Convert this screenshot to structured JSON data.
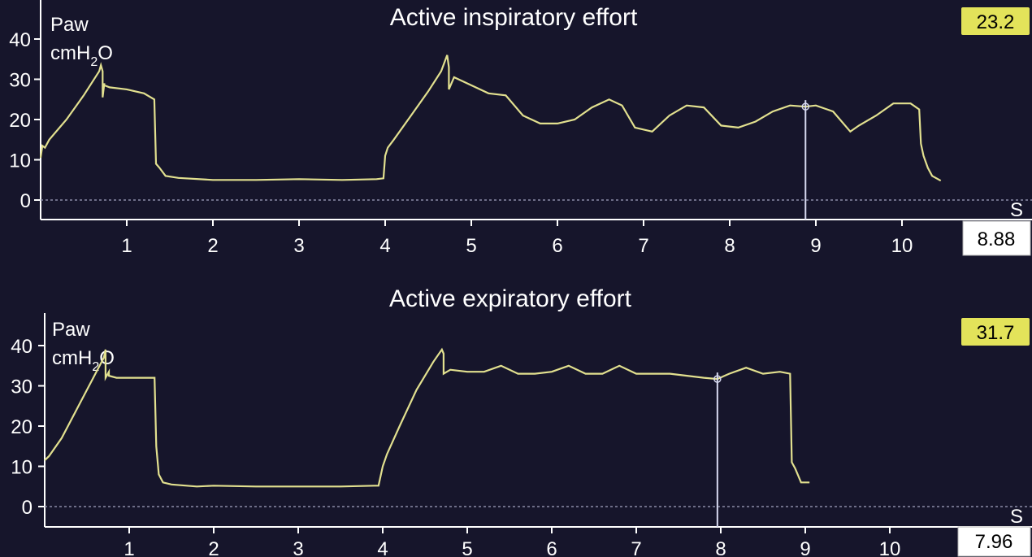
{
  "colors": {
    "background": "#16152b",
    "trace": "#e2e08f",
    "cursor": "#d7d9f0",
    "value_box": "#e3e35a",
    "time_box": "#ffffff",
    "text": "#ffffff",
    "zero_line": "#8c8ca8"
  },
  "chart_data": [
    {
      "type": "line",
      "title": "Active inspiratory effort",
      "ylabel": "Paw",
      "yunit_main": "cmH",
      "yunit_sub": "2",
      "yunit_tail": "O",
      "xunit": "S",
      "ylim": [
        -5,
        44
      ],
      "xlim": [
        0,
        11
      ],
      "yticks": [
        0,
        10,
        20,
        30,
        40
      ],
      "xticks": [
        1,
        2,
        3,
        4,
        5,
        6,
        7,
        8,
        9,
        10
      ],
      "cursor_time": 8.88,
      "cursor_time_label": "8.88",
      "cursor_value_label": "23.2",
      "series": [
        {
          "x": [
            0.0,
            0.02,
            0.05,
            0.1,
            0.3,
            0.5,
            0.68,
            0.7,
            0.72,
            0.72,
            0.74,
            0.74,
            0.8,
            1.0,
            1.2,
            1.32,
            1.34,
            1.38,
            1.45,
            1.6,
            2.0,
            2.5,
            3.0,
            3.5,
            3.9,
            3.98,
            4.0,
            4.03,
            4.1,
            4.3,
            4.5,
            4.65,
            4.72,
            4.74,
            4.74,
            4.8,
            5.0,
            5.2,
            5.4,
            5.6,
            5.8,
            6.0,
            6.2,
            6.4,
            6.6,
            6.75,
            6.9,
            7.1,
            7.3,
            7.5,
            7.7,
            7.9,
            8.1,
            8.3,
            8.5,
            8.7,
            8.88,
            9.0,
            9.2,
            9.4,
            9.5,
            9.7,
            9.9,
            10.1,
            10.2,
            10.22,
            10.25,
            10.3,
            10.35,
            10.45
          ],
          "y": [
            10.5,
            13.5,
            13.0,
            15.0,
            20.0,
            26.0,
            32.0,
            33.5,
            32.0,
            25.5,
            29.0,
            28.5,
            28.0,
            27.5,
            26.5,
            25.0,
            9.0,
            8.0,
            6.0,
            5.5,
            5.0,
            5.0,
            5.2,
            5.0,
            5.2,
            5.4,
            11.0,
            13.0,
            15.0,
            21.0,
            27.0,
            32.0,
            36.0,
            33.0,
            27.5,
            30.5,
            28.5,
            26.5,
            26.0,
            21.0,
            19.0,
            19.0,
            20.0,
            23.0,
            25.0,
            23.5,
            18.0,
            17.0,
            21.0,
            23.5,
            23.0,
            18.5,
            18.0,
            19.5,
            22.0,
            23.5,
            23.2,
            23.5,
            22.0,
            17.0,
            18.5,
            21.0,
            24.0,
            24.0,
            22.5,
            14.0,
            11.0,
            8.0,
            6.0,
            4.8
          ]
        }
      ]
    },
    {
      "type": "line",
      "title": "Active expiratory effort",
      "ylabel": "Paw",
      "yunit_main": "cmH",
      "yunit_sub": "2",
      "yunit_tail": "O",
      "xunit": "S",
      "ylim": [
        -5,
        44
      ],
      "xlim": [
        0,
        11
      ],
      "yticks": [
        0,
        10,
        20,
        30,
        40
      ],
      "xticks": [
        1,
        2,
        3,
        4,
        5,
        6,
        7,
        8,
        9,
        10
      ],
      "cursor_time": 7.96,
      "cursor_time_label": "7.96",
      "cursor_value_label": "31.7",
      "series": [
        {
          "x": [
            0.0,
            0.05,
            0.2,
            0.4,
            0.6,
            0.7,
            0.72,
            0.72,
            0.76,
            0.76,
            0.85,
            1.0,
            1.2,
            1.3,
            1.32,
            1.35,
            1.4,
            1.5,
            1.8,
            2.0,
            2.5,
            3.0,
            3.5,
            3.9,
            3.95,
            4.0,
            4.05,
            4.2,
            4.4,
            4.6,
            4.7,
            4.72,
            4.72,
            4.8,
            5.0,
            5.2,
            5.4,
            5.6,
            5.8,
            6.0,
            6.2,
            6.4,
            6.6,
            6.8,
            7.0,
            7.2,
            7.4,
            7.6,
            7.8,
            7.96,
            8.1,
            8.3,
            8.5,
            8.7,
            8.82,
            8.84,
            8.88,
            8.95,
            9.05
          ],
          "y": [
            11.5,
            12.5,
            17.0,
            25.0,
            33.0,
            37.0,
            39.0,
            32.0,
            33.5,
            32.5,
            32.0,
            32.0,
            32.0,
            32.0,
            15.0,
            8.0,
            6.0,
            5.5,
            5.0,
            5.2,
            5.0,
            5.0,
            5.0,
            5.2,
            5.2,
            10.0,
            13.0,
            20.0,
            29.0,
            36.0,
            39.0,
            38.0,
            33.0,
            34.0,
            33.5,
            33.5,
            35.0,
            33.0,
            33.0,
            33.5,
            35.0,
            33.0,
            33.0,
            35.0,
            33.0,
            33.0,
            33.0,
            32.5,
            32.0,
            31.7,
            33.0,
            34.5,
            33.0,
            33.5,
            33.0,
            11.0,
            9.5,
            6.0,
            6.0
          ]
        }
      ]
    }
  ]
}
